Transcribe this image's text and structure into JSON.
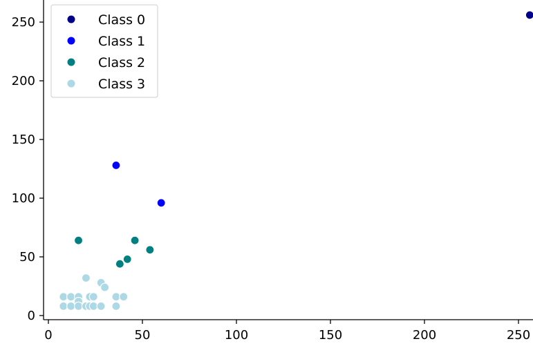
{
  "chart_data": {
    "type": "scatter",
    "title": "",
    "xlabel": "",
    "ylabel": "",
    "xlim": [
      -2,
      266
    ],
    "ylim": [
      -4,
      270
    ],
    "xticks": [
      0,
      50,
      100,
      150,
      200,
      250
    ],
    "yticks": [
      0,
      50,
      100,
      150,
      200,
      250
    ],
    "grid": false,
    "legend_position": "top-left",
    "series": [
      {
        "name": "Class 0",
        "color": "#00008b",
        "points": [
          [
            256,
            256
          ]
        ]
      },
      {
        "name": "Class 1",
        "color": "#0000ff",
        "points": [
          [
            36,
            128
          ],
          [
            60,
            96
          ]
        ]
      },
      {
        "name": "Class 2",
        "color": "#008080",
        "points": [
          [
            16,
            64
          ],
          [
            46,
            64
          ],
          [
            54,
            56
          ],
          [
            42,
            48
          ],
          [
            38,
            44
          ]
        ]
      },
      {
        "name": "Class 3",
        "color": "#add8e6",
        "points": [
          [
            20,
            32
          ],
          [
            28,
            28
          ],
          [
            30,
            24
          ],
          [
            8,
            16
          ],
          [
            12,
            16
          ],
          [
            16,
            16
          ],
          [
            22,
            16
          ],
          [
            24,
            16
          ],
          [
            36,
            16
          ],
          [
            40,
            16
          ],
          [
            16,
            12
          ],
          [
            8,
            8
          ],
          [
            12,
            8
          ],
          [
            16,
            8
          ],
          [
            20,
            8
          ],
          [
            22,
            8
          ],
          [
            24,
            8
          ],
          [
            28,
            8
          ],
          [
            36,
            8
          ]
        ]
      }
    ]
  }
}
